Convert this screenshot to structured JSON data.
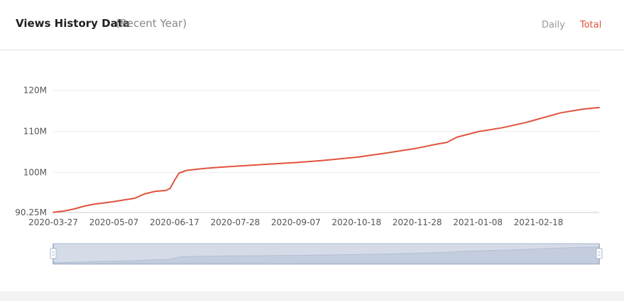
{
  "header": {
    "title": "Views History Data",
    "subtitle": "(Recent Year)",
    "tabs": [
      {
        "label": "Daily",
        "active": false
      },
      {
        "label": "Total",
        "active": true
      }
    ]
  },
  "colors": {
    "line": "#e0533e",
    "active_tab": "#e0533e",
    "inactive_tab": "#999999",
    "grid": "#ececec",
    "slider_fill": "#d5dce8",
    "slider_handle": "#a9b8cf"
  },
  "chart_data": {
    "type": "line",
    "title": "Views History Data",
    "xlabel": "",
    "ylabel": "",
    "ylim": [
      90250000,
      122000000
    ],
    "yticks": [
      {
        "value": 90250000,
        "label": "90.25M"
      },
      {
        "value": 100000000,
        "label": "100M"
      },
      {
        "value": 110000000,
        "label": "110M"
      },
      {
        "value": 120000000,
        "label": "120M"
      }
    ],
    "xlim": [
      "2020-03-27",
      "2021-03-31"
    ],
    "xticks": [
      "2020-03-27",
      "2020-05-07",
      "2020-06-17",
      "2020-07-28",
      "2020-09-07",
      "2020-10-18",
      "2020-11-28",
      "2021-01-08",
      "2021-02-18"
    ],
    "grid": true,
    "legend": "none",
    "has_zoom_slider": true,
    "series": [
      {
        "points": [
          {
            "x": "2020-03-27",
            "y": 90300000
          },
          {
            "x": "2020-04-03",
            "y": 90600000
          },
          {
            "x": "2020-04-10",
            "y": 91100000
          },
          {
            "x": "2020-04-17",
            "y": 91800000
          },
          {
            "x": "2020-04-24",
            "y": 92300000
          },
          {
            "x": "2020-05-01",
            "y": 92600000
          },
          {
            "x": "2020-05-07",
            "y": 92900000
          },
          {
            "x": "2020-05-14",
            "y": 93300000
          },
          {
            "x": "2020-05-21",
            "y": 93700000
          },
          {
            "x": "2020-05-28",
            "y": 94800000
          },
          {
            "x": "2020-06-04",
            "y": 95400000
          },
          {
            "x": "2020-06-11",
            "y": 95600000
          },
          {
            "x": "2020-06-14",
            "y": 96100000
          },
          {
            "x": "2020-06-17",
            "y": 98100000
          },
          {
            "x": "2020-06-20",
            "y": 99800000
          },
          {
            "x": "2020-06-25",
            "y": 100500000
          },
          {
            "x": "2020-07-05",
            "y": 100900000
          },
          {
            "x": "2020-07-15",
            "y": 101200000
          },
          {
            "x": "2020-07-28",
            "y": 101500000
          },
          {
            "x": "2020-08-15",
            "y": 101900000
          },
          {
            "x": "2020-09-07",
            "y": 102400000
          },
          {
            "x": "2020-09-25",
            "y": 102900000
          },
          {
            "x": "2020-10-18",
            "y": 103700000
          },
          {
            "x": "2020-11-05",
            "y": 104600000
          },
          {
            "x": "2020-11-28",
            "y": 105900000
          },
          {
            "x": "2020-12-10",
            "y": 106800000
          },
          {
            "x": "2020-12-18",
            "y": 107300000
          },
          {
            "x": "2020-12-25",
            "y": 108600000
          },
          {
            "x": "2021-01-08",
            "y": 109900000
          },
          {
            "x": "2021-01-25",
            "y": 110900000
          },
          {
            "x": "2021-02-10",
            "y": 112200000
          },
          {
            "x": "2021-02-18",
            "y": 113000000
          },
          {
            "x": "2021-03-05",
            "y": 114500000
          },
          {
            "x": "2021-03-20",
            "y": 115400000
          },
          {
            "x": "2021-03-31",
            "y": 115800000
          }
        ]
      }
    ]
  }
}
